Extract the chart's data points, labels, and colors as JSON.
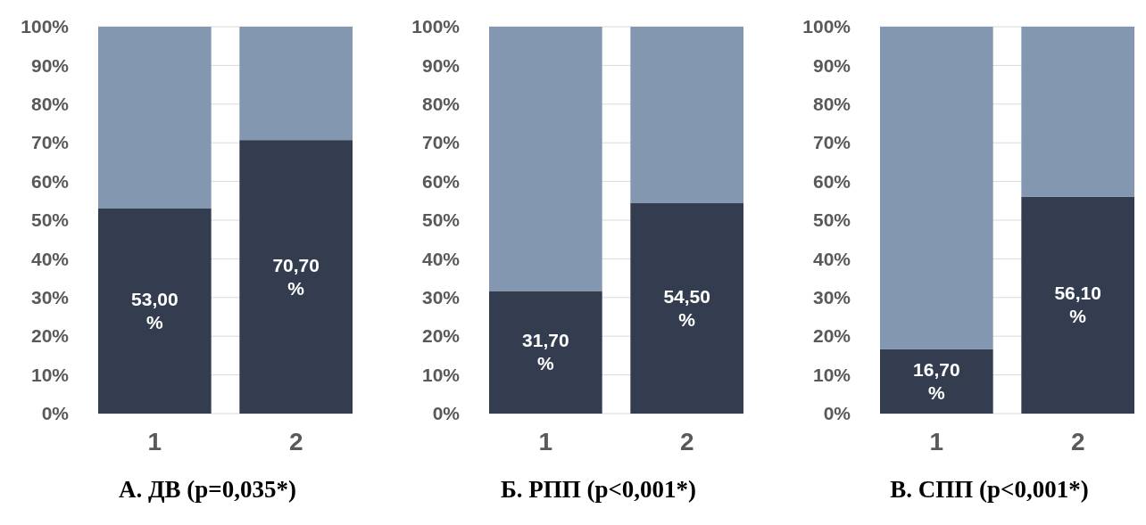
{
  "chart_data": [
    {
      "type": "bar",
      "title": "А. ДВ (p=0,035*)",
      "categories": [
        "1",
        "2"
      ],
      "stacked": true,
      "grid": "y",
      "ylim": [
        0,
        100
      ],
      "yticks": [
        {
          "value": 0,
          "label": "0%"
        },
        {
          "value": 10,
          "label": "10%"
        },
        {
          "value": 20,
          "label": "20%"
        },
        {
          "value": 30,
          "label": "30%"
        },
        {
          "value": 40,
          "label": "40%"
        },
        {
          "value": 50,
          "label": "50%"
        },
        {
          "value": 60,
          "label": "60%"
        },
        {
          "value": 70,
          "label": "70%"
        },
        {
          "value": 80,
          "label": "80%"
        },
        {
          "value": 90,
          "label": "90%"
        },
        {
          "value": 100,
          "label": "100%"
        }
      ],
      "series": [
        {
          "color": "#333d4f",
          "values": [
            53.0,
            70.7
          ],
          "value_labels": [
            "53,00 %",
            "70,70 %"
          ]
        },
        {
          "color": "#8497b0",
          "values": [
            47.0,
            29.3
          ]
        }
      ]
    },
    {
      "type": "bar",
      "title": "Б. РПП (p<0,001*)",
      "categories": [
        "1",
        "2"
      ],
      "stacked": true,
      "grid": "y",
      "ylim": [
        0,
        100
      ],
      "yticks": [
        {
          "value": 0,
          "label": "0%"
        },
        {
          "value": 10,
          "label": "10%"
        },
        {
          "value": 20,
          "label": "20%"
        },
        {
          "value": 30,
          "label": "30%"
        },
        {
          "value": 40,
          "label": "40%"
        },
        {
          "value": 50,
          "label": "50%"
        },
        {
          "value": 60,
          "label": "60%"
        },
        {
          "value": 70,
          "label": "70%"
        },
        {
          "value": 80,
          "label": "80%"
        },
        {
          "value": 90,
          "label": "90%"
        },
        {
          "value": 100,
          "label": "100%"
        }
      ],
      "series": [
        {
          "color": "#333d4f",
          "values": [
            31.7,
            54.5
          ],
          "value_labels": [
            "31,70 %",
            "54,50 %"
          ]
        },
        {
          "color": "#8497b0",
          "values": [
            68.3,
            45.5
          ]
        }
      ]
    },
    {
      "type": "bar",
      "title": "В. СПП (p<0,001*)",
      "categories": [
        "1",
        "2"
      ],
      "stacked": true,
      "grid": "y",
      "ylim": [
        0,
        100
      ],
      "yticks": [
        {
          "value": 0,
          "label": "0%"
        },
        {
          "value": 10,
          "label": "10%"
        },
        {
          "value": 20,
          "label": "20%"
        },
        {
          "value": 30,
          "label": "30%"
        },
        {
          "value": 40,
          "label": "40%"
        },
        {
          "value": 50,
          "label": "50%"
        },
        {
          "value": 60,
          "label": "60%"
        },
        {
          "value": 70,
          "label": "70%"
        },
        {
          "value": 80,
          "label": "80%"
        },
        {
          "value": 90,
          "label": "90%"
        },
        {
          "value": 100,
          "label": "100%"
        }
      ],
      "series": [
        {
          "color": "#333d4f",
          "values": [
            16.7,
            56.1
          ],
          "value_labels": [
            "16,70 %",
            "56,10 %"
          ]
        },
        {
          "color": "#8497b0",
          "values": [
            83.3,
            43.9
          ]
        }
      ]
    }
  ]
}
